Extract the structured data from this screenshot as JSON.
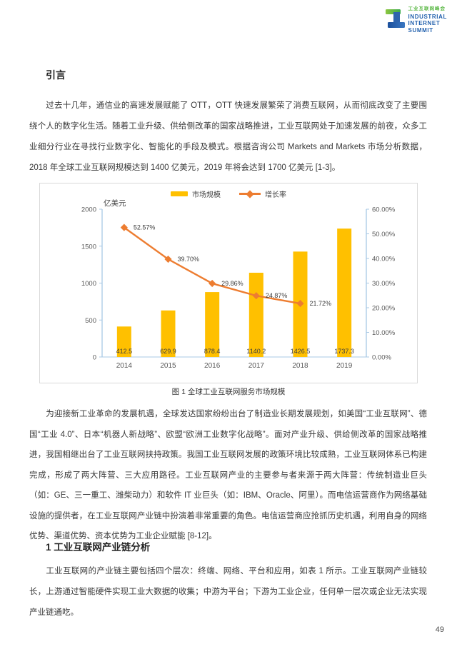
{
  "header": {
    "logo": {
      "title_cn": "工业互联网峰会",
      "en_line1": "INDUSTRIAL",
      "en_line2": "INTERNET",
      "en_line3": "SUMMIT",
      "green": "#5cb947",
      "blue": "#2462ae"
    }
  },
  "sections": {
    "intro_heading": "引言",
    "para1": "过去十几年，通信业的高速发展赋能了 OTT，OTT 快速发展繁荣了消费互联网，从而彻底改变了主要围绕个人的数字化生活。随着工业升级、供给侧改革的国家战略推进，工业互联网处于加速发展的前夜，众多工业细分行业在寻找行业数字化、智能化的手段及模式。根据咨询公司 Markets and Markets 市场分析数据，2018 年全球工业互联网规模达到 1400 亿美元，2019 年将会达到 1700 亿美元 [1-3]。",
    "figure_caption": "图 1 全球工业互联网服务市场规模",
    "para2": "为迎接新工业革命的发展机遇，全球发达国家纷纷出台了制造业长期发展规划，如美国“工业互联网”、德国“工业 4.0”、日本“机器人新战略”、欧盟“欧洲工业数字化战略”。面对产业升级、供给侧改革的国家战略推进，我国相继出台了工业互联网扶持政策。我国工业互联网发展的政策环境比较成熟，工业互联网体系已构建完成，形成了两大阵营、三大应用路径。工业互联网产业的主要参与者来源于两大阵营：传统制造业巨头（如：GE、三一重工、潍柴动力）和软件 IT 业巨头（如：IBM、Oracle、阿里）。而电信运营商作为网络基础设施的提供者，在工业互联网产业链中扮演着非常重要的角色。电信运营商应抢抓历史机遇，利用自身的网络优势、渠道优势、资本优势为工业企业赋能 [8-12]。",
    "section1_heading": "1 工业互联网产业链分析",
    "para3": "工业互联网的产业链主要包括四个层次：终端、网络、平台和应用，如表 1 所示。工业互联网产业链较长，上游通过智能硬件实现工业大数据的收集；中游为平台；下游为工业企业，任何单一层次或企业无法实现产业链通吃。"
  },
  "chart_data": {
    "type": "bar",
    "subtype": "bar-line-combo",
    "title": "",
    "categories": [
      "2014",
      "2015",
      "2016",
      "2017",
      "2018",
      "2019"
    ],
    "series": [
      {
        "name": "市场规模",
        "type": "bar",
        "axis": "left",
        "color": "#FFC000",
        "values": [
          412.5,
          629.9,
          878.4,
          1140.2,
          1426.5,
          1737.3
        ],
        "labels": [
          "412.5",
          "629.9",
          "878.4",
          "1140.2",
          "1426.5",
          "1737.3"
        ]
      },
      {
        "name": "增长率",
        "type": "line",
        "axis": "right",
        "color": "#ED7D31",
        "values": [
          52.57,
          39.7,
          29.86,
          24.87,
          21.72,
          null
        ],
        "labels": [
          "52.57%",
          "39.70%",
          "29.86%",
          "24.87%",
          "21.72%"
        ]
      }
    ],
    "left_axis": {
      "label": "亿美元",
      "range": [
        0,
        2000
      ],
      "ticks": [
        "0",
        "500",
        "1000",
        "1500",
        "2000"
      ]
    },
    "right_axis": {
      "range": [
        0,
        60
      ],
      "ticks": [
        "0.00%",
        "10.00%",
        "20.00%",
        "30.00%",
        "40.00%",
        "50.00%",
        "60.00%"
      ]
    },
    "legend": [
      "市场规模",
      "增长率"
    ],
    "legend_position": "top",
    "grid": false,
    "axis_color": "#A8C8E4"
  },
  "page": {
    "number": "49"
  }
}
